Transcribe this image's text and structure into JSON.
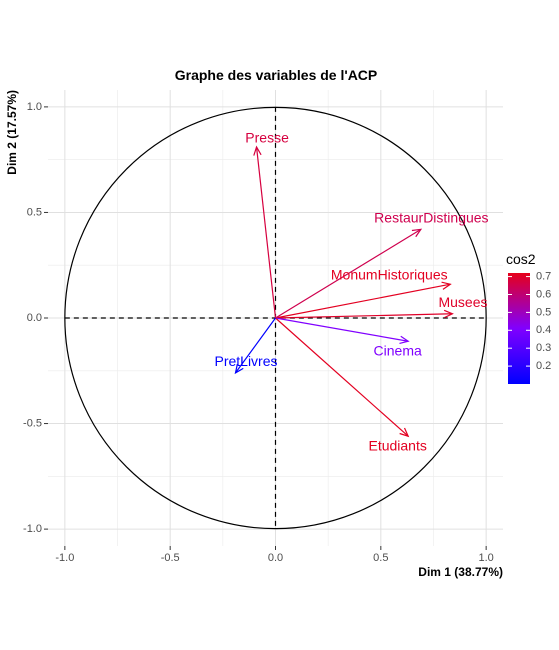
{
  "chart_data": {
    "type": "scatter",
    "subtype": "pca-correlation-circle",
    "title": "Graphe des variables de l'ACP",
    "xlabel": "Dim 1 (38.77%)",
    "ylabel": "Dim 2 (17.57%)",
    "xlim": [
      -1.08,
      1.08
    ],
    "ylim": [
      -1.08,
      1.08
    ],
    "x_ticks": [
      -1.0,
      -0.5,
      0.0,
      0.5,
      1.0
    ],
    "y_ticks": [
      -1.0,
      -0.5,
      0.0,
      0.5,
      1.0
    ],
    "x_tick_labels": [
      "-1.0",
      "-0.5",
      "0.0",
      "0.5",
      "1.0"
    ],
    "y_tick_labels": [
      "-1.0",
      "-0.5",
      "0.0",
      "0.5",
      "1.0"
    ],
    "grid": true,
    "unit_circle": true,
    "variables": [
      {
        "name": "Presse",
        "x": -0.09,
        "y": 0.81,
        "cos2": 0.67,
        "label_x": -0.04,
        "label_y": 0.85
      },
      {
        "name": "RestaurDistingues",
        "x": 0.69,
        "y": 0.42,
        "cos2": 0.65,
        "label_x": 0.74,
        "label_y": 0.47
      },
      {
        "name": "MonumHistoriques",
        "x": 0.83,
        "y": 0.16,
        "cos2": 0.71,
        "label_x": 0.54,
        "label_y": 0.2
      },
      {
        "name": "Musees",
        "x": 0.84,
        "y": 0.02,
        "cos2": 0.7,
        "label_x": 0.89,
        "label_y": 0.07
      },
      {
        "name": "Cinema",
        "x": 0.63,
        "y": -0.11,
        "cos2": 0.41,
        "label_x": 0.58,
        "label_y": -0.16
      },
      {
        "name": "Etudiants",
        "x": 0.63,
        "y": -0.56,
        "cos2": 0.71,
        "label_x": 0.58,
        "label_y": -0.61
      },
      {
        "name": "PretLivres",
        "x": -0.19,
        "y": -0.26,
        "cos2": 0.1,
        "label_x": -0.14,
        "label_y": -0.21
      }
    ],
    "legend": {
      "title": "cos2",
      "placement": "right",
      "min": 0.1,
      "max": 0.72,
      "ticks": [
        0.7,
        0.6,
        0.5,
        0.4,
        0.3,
        0.2
      ],
      "tick_labels": [
        "0.7",
        "0.6",
        "0.5",
        "0.4",
        "0.3",
        "0.2"
      ],
      "colors": {
        "low": "#0000FF",
        "mid": "#8000FF",
        "high": "#E6001A"
      }
    }
  }
}
